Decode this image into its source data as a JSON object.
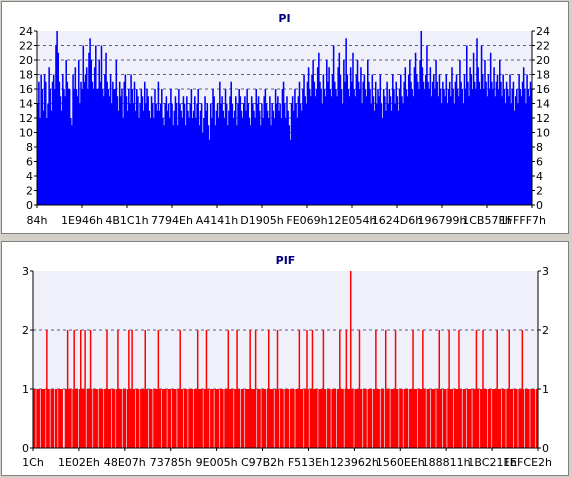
{
  "chart_data": [
    {
      "type": "bar",
      "title": "PI",
      "xlabel": "",
      "ylabel": "",
      "ylim": [
        0,
        24
      ],
      "y_ticks": [
        0,
        2,
        4,
        6,
        8,
        10,
        12,
        14,
        16,
        18,
        20,
        22,
        24
      ],
      "x_tick_labels": [
        "84h",
        "1E946h",
        "4B1C1h",
        "7794Eh",
        "A4141h",
        "D1905h",
        "FE069h",
        "12E054h",
        "1624D6h",
        "196799h",
        "1CB57Fh",
        "1FFFF7h"
      ],
      "grid": true,
      "series_color": "#0000ff",
      "values": [
        14,
        17,
        12,
        18,
        16,
        13,
        18,
        17,
        12,
        14,
        19,
        16,
        13,
        17,
        18,
        16,
        22,
        24,
        21,
        17,
        15,
        13,
        18,
        16,
        15,
        20,
        17,
        16,
        16,
        12,
        11,
        18,
        16,
        19,
        16,
        15,
        20,
        14,
        17,
        16,
        22,
        17,
        18,
        19,
        16,
        21,
        23,
        20,
        17,
        16,
        19,
        22,
        16,
        16,
        20,
        17,
        22,
        16,
        15,
        18,
        21,
        17,
        16,
        15,
        18,
        14,
        17,
        16,
        16,
        20,
        15,
        13,
        17,
        15,
        16,
        12,
        17,
        18,
        15,
        13,
        16,
        14,
        18,
        16,
        14,
        17,
        13,
        16,
        15,
        12,
        14,
        16,
        15,
        13,
        17,
        14,
        16,
        15,
        13,
        12,
        15,
        14,
        12,
        16,
        14,
        13,
        17,
        13,
        14,
        16,
        12,
        11,
        14,
        15,
        13,
        14,
        12,
        16,
        14,
        11,
        13,
        15,
        14,
        11,
        16,
        14,
        13,
        12,
        15,
        14,
        11,
        15,
        13,
        12,
        14,
        16,
        12,
        13,
        15,
        12,
        14,
        16,
        11,
        13,
        14,
        10,
        12,
        15,
        13,
        14,
        11,
        9,
        14,
        12,
        16,
        15,
        11,
        13,
        14,
        12,
        17,
        14,
        15,
        13,
        12,
        16,
        14,
        11,
        13,
        15,
        17,
        14,
        12,
        13,
        15,
        11,
        14,
        16,
        15,
        13,
        12,
        14,
        15,
        13,
        16,
        14,
        12,
        11,
        15,
        14,
        13,
        12,
        16,
        14,
        15,
        13,
        11,
        14,
        12,
        15,
        16,
        14,
        13,
        12,
        15,
        11,
        14,
        13,
        12,
        16,
        14,
        15,
        13,
        14,
        12,
        16,
        17,
        14,
        12,
        15,
        13,
        11,
        9,
        14,
        15,
        13,
        16,
        14,
        12,
        15,
        17,
        14,
        13,
        16,
        18,
        15,
        14,
        17,
        19,
        16,
        15,
        18,
        20,
        17,
        15,
        16,
        19,
        21,
        17,
        16,
        14,
        18,
        16,
        15,
        20,
        17,
        19,
        16,
        15,
        18,
        22,
        17,
        16,
        15,
        19,
        21,
        18,
        16,
        14,
        20,
        17,
        23,
        18,
        16,
        15,
        19,
        17,
        21,
        16,
        15,
        18,
        20,
        17,
        16,
        19,
        14,
        17,
        18,
        16,
        15,
        20,
        17,
        16,
        14,
        18,
        15,
        13,
        17,
        14,
        16,
        15,
        18,
        14,
        12,
        16,
        15,
        13,
        17,
        14,
        16,
        15,
        13,
        18,
        16,
        14,
        17,
        15,
        13,
        16,
        18,
        15,
        14,
        17,
        19,
        16,
        15,
        18,
        20,
        17,
        16,
        15,
        19,
        21,
        18,
        17,
        16,
        20,
        24,
        19,
        17,
        16,
        18,
        22,
        17,
        16,
        19,
        15,
        17,
        18,
        16,
        20,
        17,
        15,
        18,
        16,
        14,
        17,
        16,
        15,
        18,
        14,
        16,
        17,
        15,
        19,
        16,
        14,
        17,
        18,
        16,
        15,
        20,
        17,
        16,
        14,
        18,
        16,
        22,
        17,
        15,
        19,
        18,
        16,
        21,
        17,
        16,
        23,
        19,
        17,
        16,
        22,
        18,
        16,
        20,
        17,
        15,
        18,
        16,
        21,
        17,
        16,
        19,
        15,
        17,
        18,
        16,
        20,
        17,
        15,
        18,
        16,
        14,
        17,
        16,
        15,
        18,
        14,
        16,
        17,
        13,
        15,
        16,
        14,
        18,
        16,
        15,
        17,
        19,
        16,
        14,
        18,
        16,
        15,
        17,
        16
      ]
    },
    {
      "type": "bar",
      "title": "PIF",
      "xlabel": "",
      "ylabel": "",
      "ylim": [
        0,
        3
      ],
      "y_ticks": [
        0,
        1,
        2,
        3
      ],
      "x_tick_labels": [
        "1Ch",
        "1E02Eh",
        "48E07h",
        "73785h",
        "9E005h",
        "C97B2h",
        "F513Eh",
        "123962h",
        "1560EEh",
        "188811h",
        "1BC21Fh",
        "1EFCE2h"
      ],
      "grid": true,
      "series_color": "#ff0000",
      "values": [
        1,
        1,
        0,
        1,
        1,
        1,
        0,
        1,
        1,
        1,
        1,
        0,
        2,
        1,
        1,
        0,
        1,
        1,
        1,
        0,
        1,
        1,
        0,
        1,
        1,
        1,
        1,
        0,
        0,
        1,
        1,
        2,
        1,
        1,
        1,
        0,
        1,
        2,
        1,
        1,
        1,
        0,
        1,
        2,
        1,
        1,
        1,
        2,
        0,
        1,
        1,
        1,
        2,
        1,
        0,
        1,
        1,
        1,
        1,
        0,
        1,
        1,
        1,
        1,
        0,
        1,
        1,
        2,
        1,
        1,
        1,
        0,
        1,
        1,
        1,
        0,
        1,
        2,
        1,
        1,
        1,
        0,
        1,
        1,
        1,
        0,
        1,
        2,
        1,
        1,
        2,
        1,
        1,
        0,
        1,
        1,
        1,
        0,
        1,
        1,
        1,
        1,
        2,
        1,
        1,
        0,
        1,
        1,
        1,
        0,
        1,
        1,
        1,
        1,
        2,
        1,
        1,
        0,
        1,
        1,
        1,
        1,
        0,
        1,
        1,
        1,
        0,
        1,
        1,
        1,
        1,
        0,
        1,
        1,
        2,
        1,
        1,
        0,
        1,
        1,
        1,
        0,
        1,
        1,
        1,
        1,
        0,
        1,
        1,
        1,
        2,
        1,
        1,
        1,
        1,
        0,
        1,
        1,
        2,
        1,
        1,
        0,
        1,
        1,
        1,
        0,
        1,
        1,
        1,
        1,
        0,
        1,
        1,
        1,
        0,
        1,
        1,
        1,
        2,
        1,
        1,
        1,
        1,
        0,
        1,
        1,
        2,
        1,
        1,
        0,
        1,
        1,
        1,
        0,
        1,
        1,
        1,
        1,
        2,
        1,
        1,
        1,
        1,
        2,
        0,
        1,
        1,
        1,
        0,
        1,
        1,
        1,
        1,
        0,
        1,
        2,
        1,
        1,
        1,
        1,
        0,
        1,
        1,
        2,
        1,
        0,
        1,
        1,
        1,
        0,
        1,
        1,
        1,
        1,
        0,
        1,
        1,
        1,
        1,
        0,
        1,
        1,
        1,
        2,
        1,
        1,
        1,
        0,
        1,
        1,
        2,
        1,
        0,
        1,
        1,
        2,
        1,
        1,
        1,
        1,
        0,
        1,
        1,
        1,
        1,
        2,
        1,
        1,
        0,
        1,
        1,
        1,
        0,
        1,
        1,
        1,
        1,
        0,
        1,
        1,
        2,
        1,
        1,
        1,
        0,
        1,
        2,
        1,
        1,
        1,
        3,
        1,
        1,
        0,
        1,
        1,
        1,
        1,
        2,
        1,
        1,
        0,
        1,
        1,
        1,
        0,
        1,
        1,
        1,
        1,
        0,
        1,
        1,
        2,
        1,
        1,
        1,
        0,
        1,
        1,
        1,
        0,
        2,
        1,
        1,
        1,
        0,
        1,
        1,
        1,
        1,
        2,
        1,
        1,
        0,
        1,
        1,
        1,
        0,
        1,
        1,
        1,
        1,
        0,
        1,
        1,
        1,
        2,
        1,
        1,
        1,
        0,
        1,
        1,
        1,
        1,
        2,
        1,
        1,
        0,
        1,
        1,
        1,
        0,
        1,
        1,
        1,
        1,
        0,
        1,
        1,
        2,
        1,
        1,
        0,
        1,
        1,
        1,
        0,
        1,
        2,
        1,
        1,
        1,
        0,
        1,
        1,
        1,
        1,
        2,
        1,
        1,
        0,
        1,
        1,
        1,
        0,
        1,
        1,
        1,
        1,
        0,
        1,
        1,
        1,
        2,
        1,
        1,
        0,
        1,
        1,
        2,
        1,
        1,
        1,
        0,
        1,
        1,
        1,
        0,
        1,
        1,
        1,
        1,
        2,
        1,
        1,
        1,
        0,
        1,
        1,
        1,
        0,
        1,
        1,
        2,
        1,
        1,
        1,
        0,
        1,
        1,
        1,
        0,
        1,
        1,
        1,
        2,
        1,
        0,
        1,
        1,
        1,
        1,
        0,
        1,
        1,
        1,
        1,
        0,
        1,
        1
      ]
    }
  ]
}
